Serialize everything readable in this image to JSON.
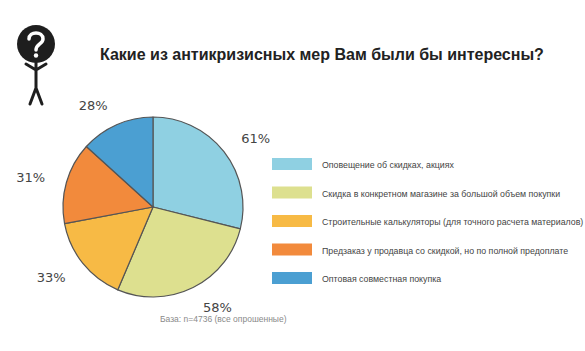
{
  "chart_data": {
    "type": "pie",
    "title": "Какие из антикризисных мер Вам были бы интересны?",
    "categories": [
      "Оповещение об скидках, акциях",
      "Скидка в конкретном магазине за большой объем покупки",
      "Строительные калькуляторы (для точного расчета материалов)",
      "Предзаказ у продавца со скидкой, но по полной предоплате",
      "Оптовая совместная покупка"
    ],
    "values": [
      61,
      58,
      33,
      31,
      28
    ],
    "value_labels": [
      "61%",
      "58%",
      "33%",
      "31%",
      "28%"
    ],
    "colors": [
      "#8fd0e2",
      "#dde08f",
      "#f7ba45",
      "#f28a3c",
      "#4b9fd2"
    ],
    "data_labels": true,
    "legend": "right",
    "annotations": [
      "База: n=4736 (все опрошенные)"
    ]
  }
}
